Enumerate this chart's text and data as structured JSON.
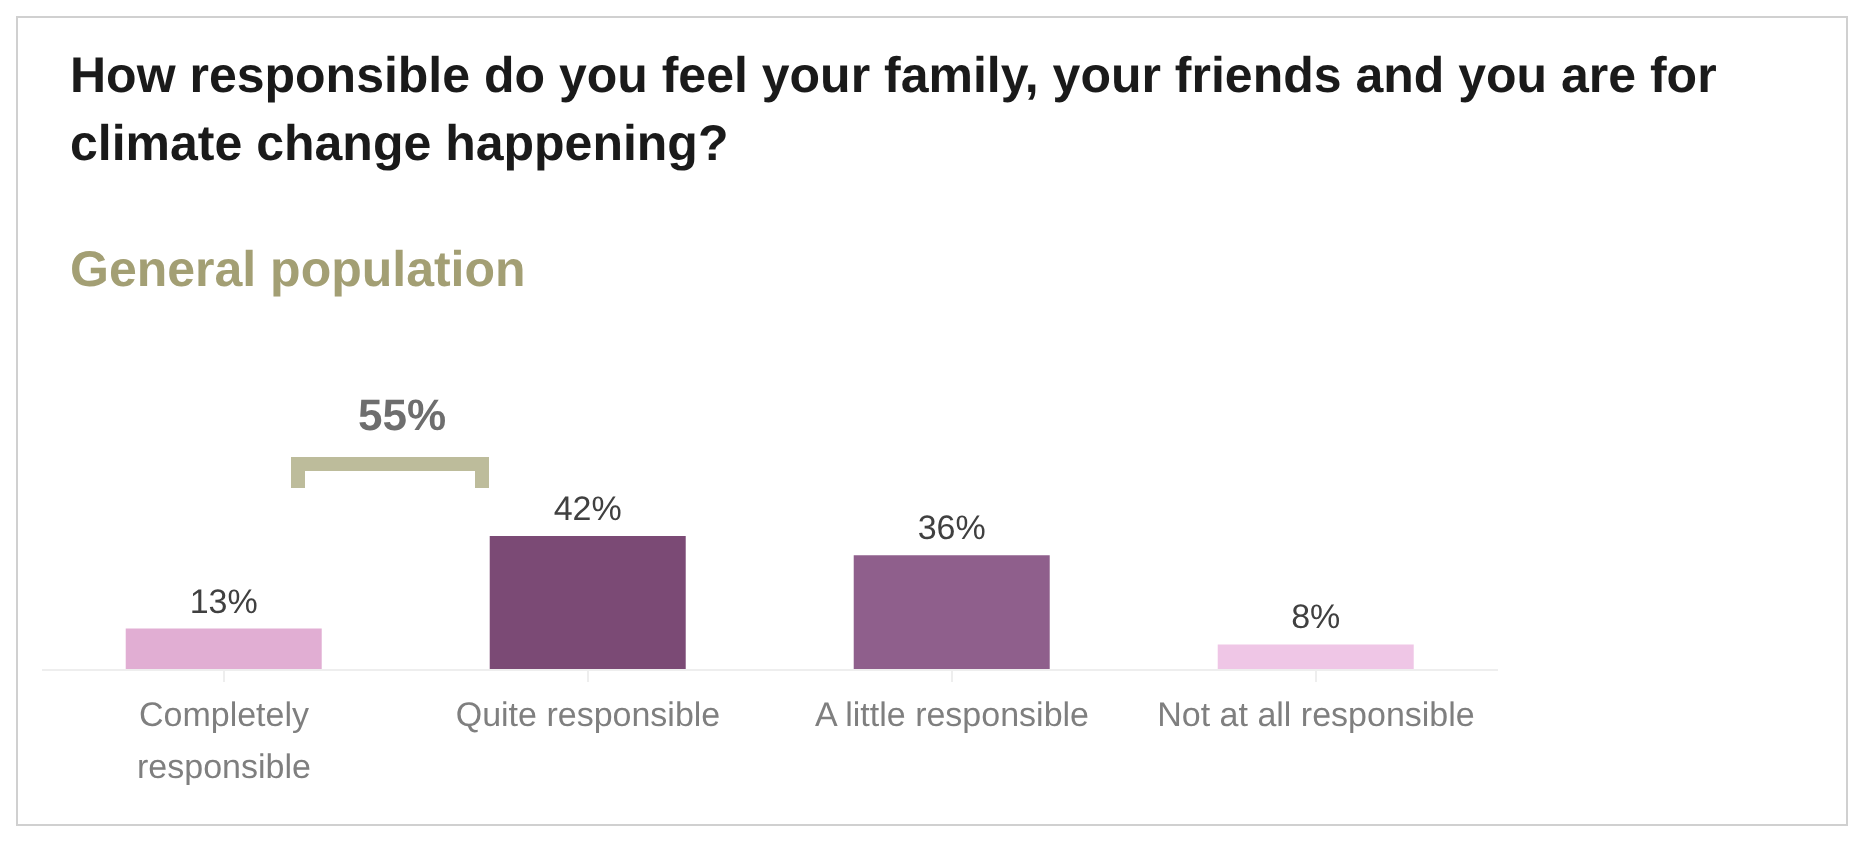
{
  "chart_data": {
    "type": "bar",
    "title": "How responsible do you feel your family, your friends and you are for climate change happening?",
    "subtitle": "General population",
    "categories": [
      "Completely responsible",
      "Quite responsible",
      "A little responsible",
      "Not at all responsible"
    ],
    "values": [
      13,
      42,
      36,
      8
    ],
    "colors": [
      "#e1aed3",
      "#7b4a75",
      "#8f5f8c",
      "#efc6e6"
    ],
    "value_labels": [
      "13%",
      "42%",
      "36%",
      "8%"
    ],
    "annotations": [
      "55%"
    ],
    "grid": false,
    "legend": false
  }
}
